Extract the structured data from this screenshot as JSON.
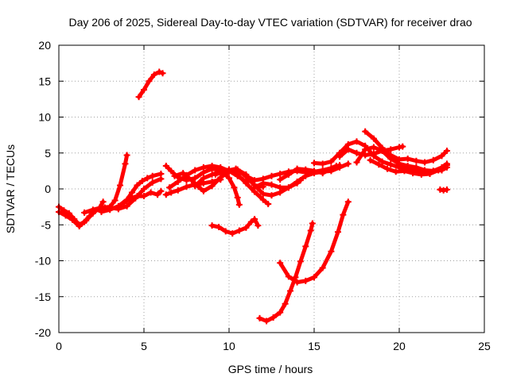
{
  "chart_data": {
    "type": "scatter",
    "title": "Day 206 of 2025, Sidereal Day-to-day VTEC variation (SDTVAR) for receiver drao",
    "xlabel": "GPS time / hours",
    "ylabel": "SDTVAR / TECUs",
    "xlim": [
      0,
      25
    ],
    "ylim": [
      -20,
      20
    ],
    "xticks": [
      0,
      5,
      10,
      15,
      20,
      25
    ],
    "yticks": [
      -20,
      -15,
      -10,
      -5,
      0,
      5,
      10,
      15,
      20
    ],
    "x_tick_labels": [
      "0",
      "5",
      "10",
      "15",
      "20",
      "25"
    ],
    "y_tick_labels": [
      "-20",
      "-15",
      "-10",
      "-5",
      "0",
      "5",
      "10",
      "15",
      "20"
    ],
    "grid": true,
    "marker": "plus",
    "color": "#ff0000",
    "series": [
      {
        "points": [
          [
            0,
            -2.5
          ],
          [
            0.3,
            -3
          ],
          [
            0.6,
            -3.4
          ],
          [
            0.9,
            -4.2
          ],
          [
            1.2,
            -5
          ],
          [
            1.5,
            -4.6
          ],
          [
            1.8,
            -3.8
          ],
          [
            2.1,
            -3.1
          ],
          [
            2.4,
            -2.8
          ],
          [
            2.7,
            -2.6
          ]
        ]
      },
      {
        "points": [
          [
            0,
            -3.2
          ],
          [
            0.4,
            -3.7
          ],
          [
            0.8,
            -4.3
          ],
          [
            1.2,
            -5.2
          ],
          [
            1.6,
            -4.4
          ],
          [
            2.0,
            -3.4
          ],
          [
            2.4,
            -2.6
          ],
          [
            2.6,
            -1.8
          ]
        ]
      },
      {
        "points": [
          [
            1.5,
            -3.3
          ],
          [
            2.0,
            -2.9
          ],
          [
            2.5,
            -2.6
          ],
          [
            3.0,
            -2.5
          ],
          [
            3.3,
            -1.6
          ],
          [
            3.6,
            0.5
          ],
          [
            3.9,
            3.5
          ],
          [
            4.0,
            4.7
          ]
        ]
      },
      {
        "points": [
          [
            2.5,
            -3.2
          ],
          [
            3.0,
            -2.9
          ],
          [
            3.5,
            -2.4
          ],
          [
            4.0,
            -1.5
          ],
          [
            4.3,
            -0.5
          ],
          [
            4.6,
            0.5
          ],
          [
            4.9,
            1.1
          ],
          [
            5.2,
            1.5
          ],
          [
            5.5,
            1.8
          ],
          [
            6.0,
            2.1
          ]
        ]
      },
      {
        "points": [
          [
            3.0,
            -2.6
          ],
          [
            3.5,
            -2.8
          ],
          [
            4.0,
            -2.4
          ],
          [
            4.5,
            -1.3
          ],
          [
            5.0,
            0
          ],
          [
            5.5,
            0.9
          ],
          [
            6.0,
            1.4
          ]
        ]
      },
      {
        "points": [
          [
            3.8,
            -2.0
          ],
          [
            4.2,
            -1.3
          ],
          [
            4.6,
            -1.0
          ],
          [
            5.0,
            -1.0
          ],
          [
            5.4,
            -0.5
          ],
          [
            5.8,
            -0.8
          ],
          [
            6.0,
            -0.3
          ]
        ]
      },
      {
        "points": [
          [
            4.7,
            12.8
          ],
          [
            5.0,
            13.8
          ],
          [
            5.3,
            15.0
          ],
          [
            5.6,
            15.9
          ],
          [
            5.9,
            16.3
          ],
          [
            6.1,
            16.1
          ]
        ]
      },
      {
        "points": [
          [
            6.3,
            -0.8
          ],
          [
            6.6,
            -0.5
          ],
          [
            7.0,
            -0.2
          ],
          [
            7.5,
            0.3
          ],
          [
            8.0,
            0.6
          ],
          [
            8.5,
            0.8
          ],
          [
            9.0,
            1.0
          ],
          [
            9.5,
            1.3
          ]
        ]
      },
      {
        "points": [
          [
            6.3,
            3.2
          ],
          [
            6.6,
            2.5
          ],
          [
            7.0,
            1.6
          ],
          [
            7.5,
            1.2
          ],
          [
            8.0,
            1.5
          ],
          [
            8.5,
            2.3
          ],
          [
            9.0,
            2.8
          ],
          [
            9.5,
            2.6
          ],
          [
            10.0,
            1.5
          ],
          [
            10.3,
            0.2
          ],
          [
            10.5,
            -1.2
          ],
          [
            10.6,
            -2.2
          ]
        ]
      },
      {
        "points": [
          [
            6.5,
            0.2
          ],
          [
            7.0,
            1.0
          ],
          [
            7.5,
            1.9
          ],
          [
            8.0,
            2.6
          ],
          [
            8.5,
            3.0
          ],
          [
            9.0,
            3.2
          ],
          [
            9.5,
            3.0
          ],
          [
            10.0,
            2.5
          ],
          [
            10.5,
            1.8
          ],
          [
            11.0,
            1.0
          ]
        ]
      },
      {
        "points": [
          [
            6.8,
            1.8
          ],
          [
            7.3,
            2.2
          ],
          [
            7.8,
            1.2
          ],
          [
            8.2,
            0.3
          ],
          [
            8.5,
            -0.3
          ],
          [
            9.0,
            0.4
          ],
          [
            9.5,
            1.6
          ],
          [
            10.0,
            2.4
          ],
          [
            10.5,
            2.7
          ],
          [
            11.0,
            1.7
          ],
          [
            11.5,
            0.5
          ],
          [
            12.0,
            0.3
          ]
        ]
      },
      {
        "points": [
          [
            8.0,
            0.4
          ],
          [
            8.5,
            1.5
          ],
          [
            9.0,
            2.0
          ],
          [
            9.5,
            2.4
          ],
          [
            10.0,
            2.7
          ],
          [
            10.5,
            2.0
          ],
          [
            11.0,
            0.8
          ],
          [
            11.5,
            -0.4
          ],
          [
            12.0,
            -1.5
          ],
          [
            12.3,
            -2.1
          ]
        ]
      },
      {
        "points": [
          [
            9.2,
            2.0
          ],
          [
            9.8,
            2.5
          ],
          [
            10.4,
            2.8
          ],
          [
            11.0,
            2.0
          ],
          [
            11.5,
            0.5
          ],
          [
            12.0,
            -0.7
          ],
          [
            12.5,
            -0.9
          ],
          [
            13.0,
            -0.5
          ],
          [
            13.5,
            0.2
          ],
          [
            14.0,
            0.8
          ],
          [
            14.2,
            1.2
          ]
        ]
      },
      {
        "points": [
          [
            11.5,
            0.2
          ],
          [
            12.0,
            0.8
          ],
          [
            12.5,
            0.6
          ],
          [
            13.0,
            0.2
          ],
          [
            13.5,
            0.2
          ],
          [
            14.0,
            1.0
          ],
          [
            14.5,
            1.8
          ],
          [
            15.0,
            2.2
          ],
          [
            15.5,
            2.4
          ],
          [
            16.0,
            2.5
          ],
          [
            16.5,
            3.0
          ],
          [
            17.0,
            3.5
          ]
        ]
      },
      {
        "points": [
          [
            11.0,
            1.8
          ],
          [
            11.5,
            1.2
          ],
          [
            12.0,
            1.4
          ],
          [
            12.5,
            1.8
          ],
          [
            13.0,
            2.1
          ],
          [
            13.5,
            2.4
          ],
          [
            14.0,
            2.5
          ],
          [
            14.5,
            2.3
          ],
          [
            15.0,
            2.4
          ],
          [
            15.5,
            2.6
          ],
          [
            16.0,
            2.9
          ],
          [
            16.3,
            3.2
          ]
        ]
      },
      {
        "points": [
          [
            13.0,
            1.3
          ],
          [
            13.5,
            2.0
          ],
          [
            14.0,
            2.8
          ],
          [
            14.5,
            2.7
          ],
          [
            15.0,
            2.5
          ],
          [
            15.5,
            2.2
          ],
          [
            16.0,
            2.8
          ],
          [
            16.5,
            3.3
          ]
        ]
      },
      {
        "points": [
          [
            15.0,
            3.6
          ],
          [
            15.5,
            3.5
          ],
          [
            16.0,
            3.8
          ],
          [
            16.5,
            5.0
          ],
          [
            17.0,
            6.2
          ],
          [
            17.5,
            6.6
          ],
          [
            18.0,
            6.0
          ],
          [
            18.5,
            4.6
          ],
          [
            19.0,
            3.8
          ],
          [
            19.5,
            3.4
          ],
          [
            20.0,
            3.0
          ],
          [
            20.5,
            2.8
          ],
          [
            21.0,
            2.5
          ],
          [
            21.5,
            2.3
          ],
          [
            22.0,
            2.5
          ],
          [
            22.5,
            3.0
          ],
          [
            22.8,
            3.5
          ]
        ]
      },
      {
        "points": [
          [
            16.5,
            4.5
          ],
          [
            17.0,
            5.5
          ],
          [
            17.5,
            5.0
          ],
          [
            18.0,
            4.7
          ],
          [
            18.5,
            4.9
          ],
          [
            19.0,
            5.3
          ],
          [
            19.5,
            5.5
          ],
          [
            20.0,
            5.8
          ],
          [
            20.2,
            5.9
          ]
        ]
      },
      {
        "points": [
          [
            17.5,
            3.7
          ],
          [
            18.0,
            5.5
          ],
          [
            18.5,
            5.8
          ],
          [
            19.0,
            5.3
          ],
          [
            19.5,
            4.2
          ],
          [
            20.0,
            3.5
          ],
          [
            20.5,
            3.2
          ],
          [
            21.0,
            3.0
          ],
          [
            21.5,
            2.6
          ],
          [
            22.0,
            2.5
          ],
          [
            22.5,
            2.6
          ],
          [
            22.8,
            3.0
          ]
        ]
      },
      {
        "points": [
          [
            18.0,
            8.0
          ],
          [
            18.5,
            7.0
          ],
          [
            19.0,
            5.7
          ],
          [
            19.5,
            4.7
          ],
          [
            20.0,
            4.1
          ],
          [
            20.5,
            4.2
          ],
          [
            21.0,
            3.9
          ],
          [
            21.5,
            3.7
          ],
          [
            22.0,
            4.0
          ],
          [
            22.5,
            4.6
          ],
          [
            22.8,
            5.3
          ]
        ]
      },
      {
        "points": [
          [
            18.3,
            4.0
          ],
          [
            18.8,
            3.4
          ],
          [
            19.3,
            2.8
          ],
          [
            19.8,
            2.4
          ],
          [
            20.3,
            2.5
          ],
          [
            20.8,
            2.2
          ],
          [
            21.3,
            2.0
          ],
          [
            21.8,
            2.1
          ],
          [
            22.3,
            2.6
          ],
          [
            22.8,
            3.3
          ]
        ]
      },
      {
        "points": [
          [
            22.4,
            -0.1
          ],
          [
            22.6,
            -0.2
          ],
          [
            22.8,
            -0.1
          ]
        ]
      },
      {
        "points": [
          [
            9.0,
            -5.1
          ],
          [
            9.4,
            -5.3
          ],
          [
            9.8,
            -5.9
          ],
          [
            10.2,
            -6.2
          ],
          [
            10.6,
            -5.8
          ],
          [
            11.0,
            -5.4
          ],
          [
            11.3,
            -4.6
          ],
          [
            11.5,
            -4.2
          ],
          [
            11.7,
            -5.1
          ]
        ]
      },
      {
        "points": [
          [
            11.8,
            -18.0
          ],
          [
            12.2,
            -18.4
          ],
          [
            12.6,
            -17.9
          ],
          [
            13.0,
            -17.2
          ],
          [
            13.3,
            -16.0
          ],
          [
            13.6,
            -14.2
          ],
          [
            13.9,
            -12.3
          ],
          [
            14.2,
            -10.1
          ],
          [
            14.5,
            -8.0
          ],
          [
            14.8,
            -5.8
          ],
          [
            14.9,
            -4.8
          ]
        ]
      },
      {
        "points": [
          [
            13.0,
            -10.3
          ],
          [
            13.5,
            -12.2
          ],
          [
            14.0,
            -13.0
          ],
          [
            14.5,
            -12.8
          ],
          [
            15.0,
            -12.3
          ],
          [
            15.5,
            -11.0
          ],
          [
            16.0,
            -8.7
          ],
          [
            16.4,
            -6.0
          ],
          [
            16.7,
            -3.6
          ],
          [
            17.0,
            -1.8
          ]
        ]
      }
    ]
  }
}
